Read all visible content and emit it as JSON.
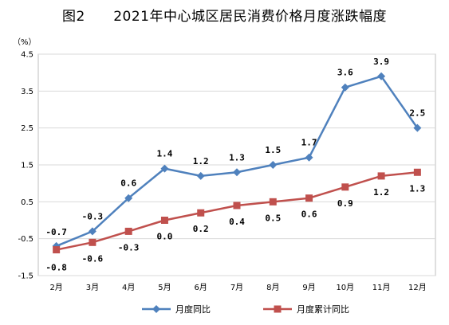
{
  "chart_data": {
    "type": "line",
    "title": "图2      2021年中心城区居民消费价格月度涨跌幅度",
    "unit_label": "（%）",
    "categories": [
      "2月",
      "3月",
      "4月",
      "5月",
      "6月",
      "7月",
      "8月",
      "9月",
      "10月",
      "11月",
      "12月"
    ],
    "ylim": [
      -1.5,
      4.5
    ],
    "yticks": [
      "4.5",
      "3.5",
      "2.5",
      "1.5",
      "0.5",
      "-0.5",
      "-1.5"
    ],
    "grid": true,
    "legend_position": "bottom",
    "series": [
      {
        "name": "月度同比",
        "color": "#4F81BD",
        "marker": "diamond",
        "values": [
          -0.7,
          -0.3,
          0.6,
          1.4,
          1.2,
          1.3,
          1.5,
          1.7,
          3.6,
          3.9,
          2.5
        ],
        "labels": [
          "-0.7",
          "-0.3",
          "0.6",
          "1.4",
          "1.2",
          "1.3",
          "1.5",
          "1.7",
          "3.6",
          "3.9",
          "2.5"
        ]
      },
      {
        "name": "月度累计同比",
        "color": "#C0504D",
        "marker": "square",
        "values": [
          -0.8,
          -0.6,
          -0.3,
          0.0,
          0.2,
          0.4,
          0.5,
          0.6,
          0.9,
          1.2,
          1.3
        ],
        "labels": [
          "-0.8",
          "-0.6",
          "-0.3",
          "0.0",
          "0.2",
          "0.4",
          "0.5",
          "0.6",
          "0.9",
          "1.2",
          "1.3"
        ]
      }
    ]
  }
}
